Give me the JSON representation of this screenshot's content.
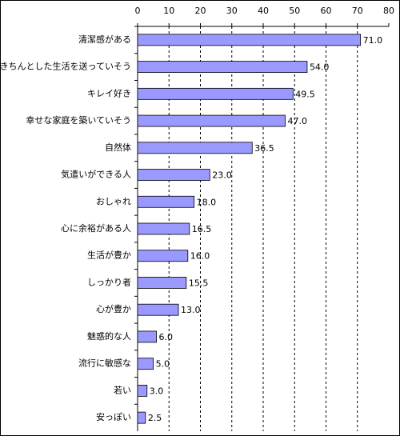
{
  "chart_data": {
    "type": "bar",
    "orientation": "horizontal",
    "categories": [
      "清潔感がある",
      "きちんとした生活を送っていそう",
      "キレイ好き",
      "幸せな家庭を築いていそう",
      "自然体",
      "気遣いができる人",
      "おしゃれ",
      "心に余裕がある人",
      "生活が豊か",
      "しっかり者",
      "心が豊か",
      "魅惑的な人",
      "流行に敏感な",
      "若い",
      "安っぽい"
    ],
    "values": [
      71,
      54,
      49.5,
      47,
      36.5,
      23,
      18,
      16.5,
      16,
      15.5,
      13,
      6,
      5,
      3,
      2.5
    ],
    "value_labels": [
      "71.0",
      "54.0",
      "49.5",
      "47.0",
      "36.5",
      "23.0",
      "18.0",
      "16.5",
      "16.0",
      "15.5",
      "13.0",
      "6.0",
      "5.0",
      "3.0",
      "2.5"
    ],
    "color": "#9999ff",
    "xlim": [
      0,
      80
    ],
    "xticks": [
      0,
      10,
      20,
      30,
      40,
      50,
      60,
      70,
      80
    ],
    "grid": true
  }
}
